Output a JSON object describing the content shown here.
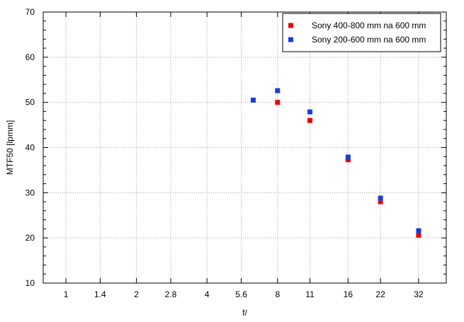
{
  "chart_data": {
    "type": "scatter",
    "title": "",
    "xlabel": "f/",
    "ylabel": "MTF50 [lpmm]",
    "x_scale": "log2",
    "x_ticks": [
      1,
      1.4,
      2,
      2.8,
      4,
      5.6,
      8,
      11,
      16,
      22,
      32
    ],
    "x_tick_labels": [
      "1",
      "1.4",
      "2",
      "2.8",
      "4",
      "5.6",
      "8",
      "11",
      "16",
      "22",
      "32"
    ],
    "xlim": [
      0.8,
      42
    ],
    "ylim": [
      10,
      70
    ],
    "y_ticks": [
      10,
      20,
      30,
      40,
      50,
      60,
      70
    ],
    "y_tick_labels": [
      "10",
      "20",
      "30",
      "40",
      "50",
      "60",
      "70"
    ],
    "grid": true,
    "legend_position": "top-right",
    "series": [
      {
        "name": "Sony 400-800 mm na 600 mm",
        "color": "#e8000b",
        "x": [
          8,
          11,
          16,
          22,
          32
        ],
        "y": [
          50.0,
          46.0,
          37.3,
          28.0,
          20.6
        ]
      },
      {
        "name": "Sony 200-600 mm na 600 mm",
        "color": "#1a3fd6",
        "x": [
          6.3,
          8,
          11,
          16,
          22,
          32
        ],
        "y": [
          50.5,
          52.6,
          47.9,
          37.9,
          28.8,
          21.6
        ]
      }
    ]
  }
}
